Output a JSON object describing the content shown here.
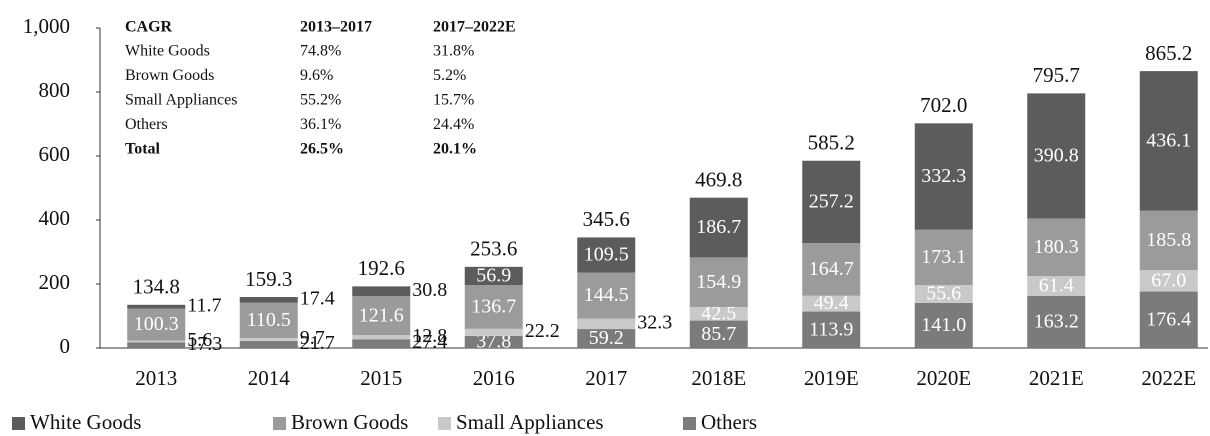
{
  "chart_data": {
    "type": "stacked_bar",
    "categories": [
      "2013",
      "2014",
      "2015",
      "2016",
      "2017",
      "2018E",
      "2019E",
      "2020E",
      "2021E",
      "2022E"
    ],
    "series": [
      {
        "name": "White Goods",
        "color": "#5c5c5c",
        "values": [
          11.7,
          17.4,
          30.8,
          56.9,
          109.5,
          186.7,
          257.2,
          332.3,
          390.8,
          436.1
        ],
        "value_labels": [
          "11.7",
          "17.4",
          "30.8",
          "56.9",
          "109.5",
          "186.7",
          "257.2",
          "332.3",
          "390.8",
          "436.1"
        ]
      },
      {
        "name": "Brown Goods",
        "color": "#9b9b9b",
        "values": [
          100.3,
          110.5,
          121.6,
          136.7,
          144.5,
          154.9,
          164.7,
          173.1,
          180.3,
          185.8
        ],
        "value_labels": [
          "100.3",
          "110.5",
          "121.6",
          "136.7",
          "144.5",
          "154.9",
          "164.7",
          "173.1",
          "180.3",
          "185.8"
        ]
      },
      {
        "name": "Small Appliances",
        "color": "#c9c9c9",
        "values": [
          5.6,
          9.7,
          12.8,
          22.2,
          32.3,
          42.5,
          49.4,
          55.6,
          61.4,
          67.0
        ],
        "value_labels": [
          "5.6",
          "9.7",
          "12.8",
          "22.2",
          "32.3",
          "42.5",
          "49.4",
          "55.6",
          "61.4",
          "67.0"
        ]
      },
      {
        "name": "Others",
        "color": "#7b7b7b",
        "values": [
          17.3,
          21.7,
          27.4,
          37.8,
          59.2,
          85.7,
          113.9,
          141.0,
          163.2,
          176.4
        ],
        "value_labels": [
          "17.3",
          "21.7",
          "27.4",
          "37.8",
          "59.2",
          "85.7",
          "113.9",
          "141.0",
          "163.2",
          "176.4"
        ]
      }
    ],
    "totals": [
      134.8,
      159.3,
      192.6,
      253.6,
      345.6,
      469.8,
      585.2,
      702.0,
      795.7,
      865.2
    ],
    "total_labels": [
      "134.8",
      "159.3",
      "192.6",
      "253.6",
      "345.6",
      "469.8",
      "585.2",
      "702.0",
      "795.7",
      "865.2"
    ],
    "ylim": [
      0,
      1000
    ],
    "yticks": [
      0,
      200,
      400,
      600,
      800,
      {
        "value": 1000,
        "label": "1,000"
      }
    ],
    "grid": false,
    "legend": "bottom",
    "cagr_table": {
      "header": [
        "CAGR",
        "2013–2017",
        "2017–2022E"
      ],
      "rows": [
        [
          "White Goods",
          "74.8%",
          "31.8%"
        ],
        [
          "Brown Goods",
          "9.6%",
          "5.2%"
        ],
        [
          "Small Appliances",
          "55.2%",
          "15.7%"
        ],
        [
          "Others",
          "36.1%",
          "24.4%"
        ],
        [
          "Total",
          "26.5%",
          "20.1%"
        ]
      ]
    }
  }
}
